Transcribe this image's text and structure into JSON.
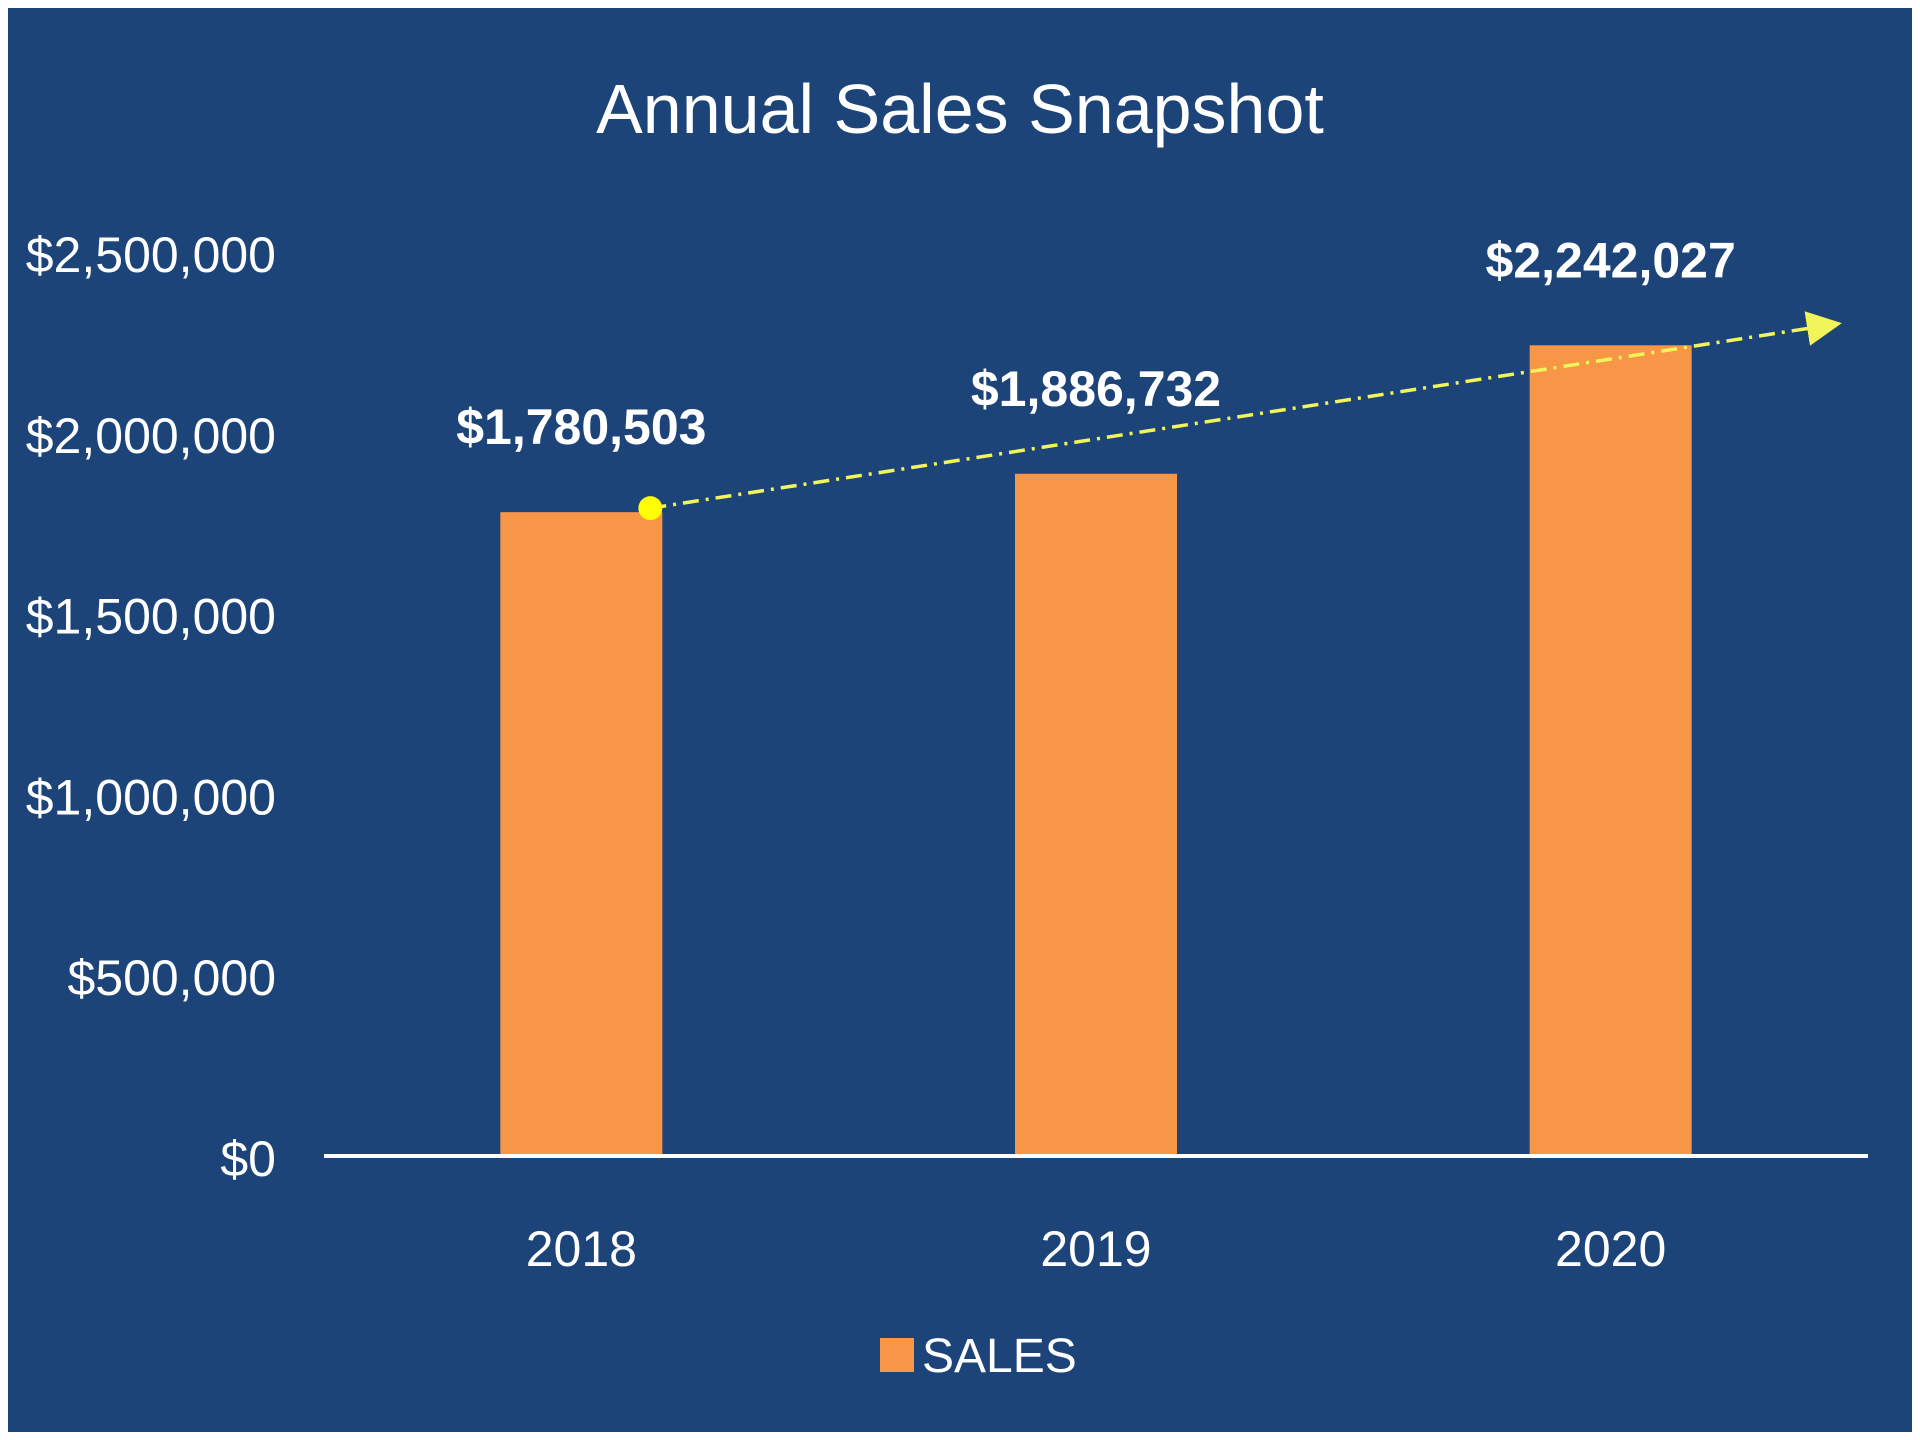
{
  "colors": {
    "background": "#1c4479",
    "bar": "#f79646",
    "text": "#ffffff",
    "axis": "#ffffff",
    "trend": "#f2f55a",
    "trend_marker": "#ffff00"
  },
  "chart_data": {
    "type": "bar",
    "title": "Annual Sales Snapshot",
    "categories": [
      "2018",
      "2019",
      "2020"
    ],
    "series": [
      {
        "name": "SALES",
        "values": [
          1780503,
          1886732,
          2242027
        ],
        "data_labels": [
          "$1,780,503",
          "$1,886,732",
          "$2,242,027"
        ]
      }
    ],
    "ylim": [
      0,
      2500000
    ],
    "yticks": [
      0,
      500000,
      1000000,
      1500000,
      2000000,
      2500000
    ],
    "ytick_labels": [
      "$0",
      "$500,000",
      "$1,000,000",
      "$1,500,000",
      "$2,000,000",
      "$2,500,000"
    ],
    "grid": false,
    "legend": "bottom-center",
    "trendline": {
      "style": "dash-dot",
      "arrow": true,
      "start_value": 1780503,
      "end_value": 2242027
    }
  }
}
